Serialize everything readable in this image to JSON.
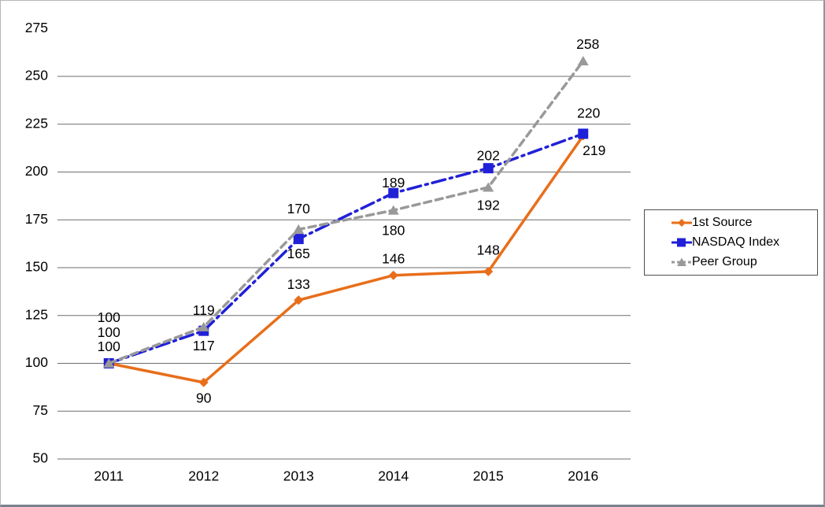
{
  "chart_data": {
    "type": "line",
    "title": "",
    "categories": [
      "2011",
      "2012",
      "2013",
      "2014",
      "2015",
      "2016"
    ],
    "series": [
      {
        "name": "1st Source",
        "color": "#e86e1a",
        "marker": "diamond",
        "dash": "solid",
        "values": [
          100,
          90,
          133,
          146,
          148,
          219
        ],
        "label_offsets": [
          [
            0,
            -20
          ],
          [
            0,
            21
          ],
          [
            0,
            -19
          ],
          [
            0,
            -20
          ],
          [
            0,
            -26
          ],
          [
            14,
            20
          ]
        ]
      },
      {
        "name": "NASDAQ Index",
        "color": "#2020d8",
        "marker": "square",
        "dash": "dashdot",
        "values": [
          100,
          117,
          165,
          189,
          202,
          220
        ],
        "label_offsets": [
          [
            0,
            -38
          ],
          [
            0,
            20
          ],
          [
            0,
            20
          ],
          [
            0,
            -12
          ],
          [
            0,
            -15
          ],
          [
            7,
            -25
          ]
        ]
      },
      {
        "name": "Peer Group",
        "color": "#999999",
        "marker": "triangle",
        "dash": "dash",
        "values": [
          100,
          119,
          170,
          180,
          192,
          258
        ],
        "label_offsets": [
          [
            0,
            -57
          ],
          [
            0,
            -20
          ],
          [
            0,
            -25
          ],
          [
            0,
            27
          ],
          [
            0,
            24
          ],
          [
            6,
            -20
          ]
        ]
      }
    ],
    "y_ticks": [
      50,
      75,
      100,
      125,
      150,
      175,
      200,
      225,
      250,
      275
    ],
    "gridline_ticks": [
      50,
      75,
      100,
      125,
      150,
      175,
      200,
      225,
      250
    ],
    "ylim": [
      50,
      275
    ],
    "xlabel": "",
    "ylabel": "",
    "grid": true,
    "legend_position": "right",
    "gridline_color": "#6e6e6e",
    "text_color": "#000000"
  }
}
